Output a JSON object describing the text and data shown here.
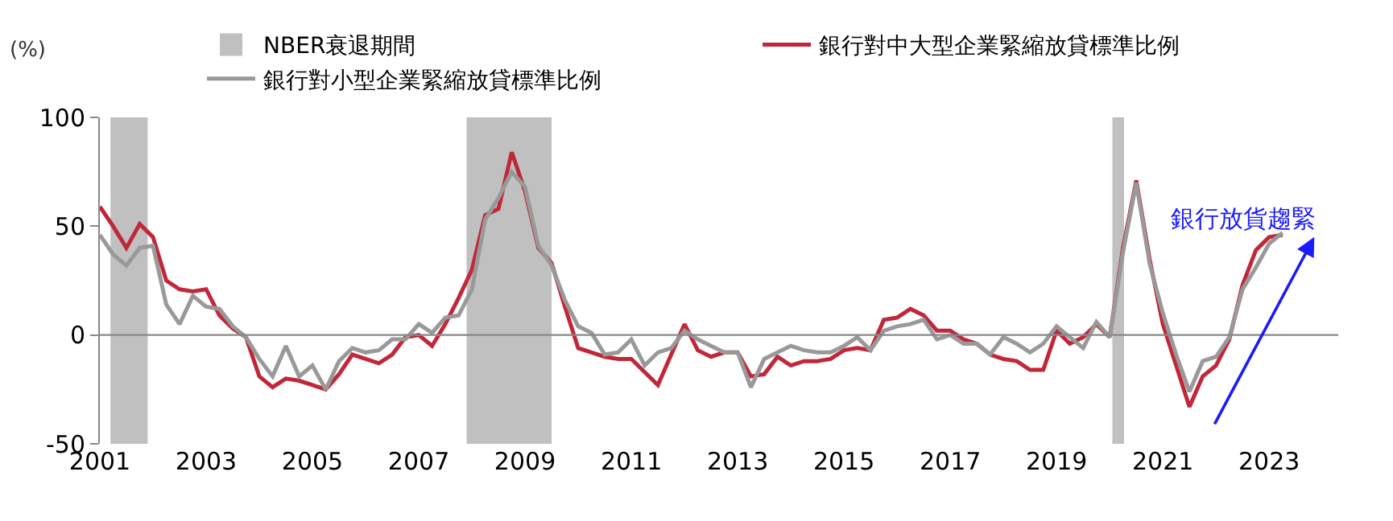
{
  "chart_data": {
    "type": "line",
    "ylabel": "(%)",
    "legend": "top",
    "grid": false,
    "line_style": "solid",
    "marker": "none",
    "x": [
      2001.0,
      2001.25,
      2001.5,
      2001.75,
      2002.0,
      2002.25,
      2002.5,
      2002.75,
      2003.0,
      2003.25,
      2003.5,
      2003.75,
      2004.0,
      2004.25,
      2004.5,
      2004.75,
      2005.0,
      2005.25,
      2005.5,
      2005.75,
      2006.0,
      2006.25,
      2006.5,
      2006.75,
      2007.0,
      2007.25,
      2007.5,
      2007.75,
      2008.0,
      2008.25,
      2008.5,
      2008.75,
      2009.0,
      2009.25,
      2009.5,
      2009.75,
      2010.0,
      2010.25,
      2010.5,
      2010.75,
      2011.0,
      2011.25,
      2011.5,
      2011.75,
      2012.0,
      2012.25,
      2012.5,
      2012.75,
      2013.0,
      2013.25,
      2013.5,
      2013.75,
      2014.0,
      2014.25,
      2014.5,
      2014.75,
      2015.0,
      2015.25,
      2015.5,
      2015.75,
      2016.0,
      2016.25,
      2016.5,
      2016.75,
      2017.0,
      2017.25,
      2017.5,
      2017.75,
      2018.0,
      2018.25,
      2018.5,
      2018.75,
      2019.0,
      2019.25,
      2019.5,
      2019.75,
      2020.0,
      2020.25,
      2020.5,
      2020.75,
      2021.0,
      2021.25,
      2021.5,
      2021.75,
      2022.0,
      2022.25,
      2022.5,
      2022.75,
      2023.0,
      2023.25
    ],
    "series": [
      {
        "name": "銀行對中大型企業緊縮放貸標準比例",
        "color": "#c0283a",
        "values": [
          59,
          50,
          40,
          51,
          45,
          25,
          21,
          20,
          21,
          9,
          3,
          -1,
          -19,
          -24,
          -20,
          -21,
          -23,
          -25,
          -18,
          -9,
          -11,
          -13,
          -9,
          -1,
          0,
          -5,
          5,
          17,
          30,
          55,
          58,
          84,
          66,
          40,
          33,
          13,
          -6,
          -8,
          -10,
          -11,
          -11,
          -17,
          -23,
          -9,
          5,
          -7,
          -10,
          -8,
          -8,
          -19,
          -18,
          -10,
          -14,
          -12,
          -12,
          -11,
          -7,
          -6,
          -7,
          7,
          8,
          12,
          9,
          2,
          2,
          -2,
          -4,
          -9,
          -11,
          -12,
          -16,
          -16,
          2,
          -4,
          -1,
          5,
          -1,
          40,
          71,
          35,
          5,
          -14,
          -33,
          -19,
          -14,
          -2,
          23,
          39,
          45,
          46
        ]
      },
      {
        "name": "銀行對小型企業緊縮放貸標準比例",
        "color": "#999999",
        "values": [
          46,
          37,
          32,
          40,
          41,
          14,
          5,
          18,
          13,
          12,
          4,
          -1,
          -11,
          -19,
          -5,
          -19,
          -14,
          -25,
          -12,
          -6,
          -8,
          -7,
          -2,
          -2,
          5,
          1,
          8,
          9,
          21,
          53,
          63,
          75,
          68,
          41,
          32,
          16,
          4,
          1,
          -9,
          -8,
          -2,
          -14,
          -8,
          -6,
          2,
          -2,
          -5,
          -8,
          -8,
          -24,
          -11,
          -8,
          -5,
          -7,
          -8,
          -8,
          -5,
          -1,
          -7,
          2,
          4,
          5,
          7,
          -2,
          0,
          -4,
          -4,
          -9,
          -1,
          -4,
          -8,
          -4,
          4,
          -1,
          -6,
          6,
          -1,
          38,
          70,
          33,
          10,
          -9,
          -26,
          -12,
          -10,
          -1,
          21,
          31,
          42,
          47
        ]
      }
    ],
    "bands": [
      {
        "axis": "x",
        "from": 2001.2,
        "to": 2001.9,
        "label": "NBER衰退期間",
        "color": "#c0c0c0"
      },
      {
        "axis": "x",
        "from": 2007.9,
        "to": 2009.5,
        "color": "#c0c0c0"
      },
      {
        "axis": "x",
        "from": 2020.05,
        "to": 2020.27,
        "color": "#c0c0c0"
      }
    ],
    "ref_lines": [
      {
        "axis": "y",
        "value": 0,
        "color": "#888888"
      }
    ],
    "annotations": [
      "銀行放貨趨緊"
    ],
    "xlim": [
      2001,
      2024.3
    ],
    "xticks": [
      2001,
      2003,
      2005,
      2007,
      2009,
      2011,
      2013,
      2015,
      2017,
      2019,
      2021,
      2023
    ],
    "ylim": [
      -50,
      100
    ],
    "yticks": [
      -50,
      0,
      50,
      100
    ]
  }
}
